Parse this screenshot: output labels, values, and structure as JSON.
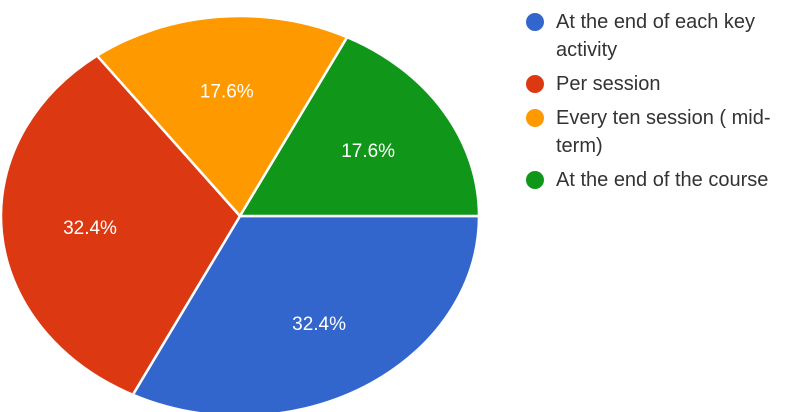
{
  "chart_data": {
    "type": "pie",
    "title": "",
    "slices": [
      {
        "label": "At the end of each key activity",
        "value": 32.4,
        "value_label": "32.4%",
        "color": "#3366cc"
      },
      {
        "label": "Per session",
        "value": 32.4,
        "value_label": "32.4%",
        "color": "#dc3912"
      },
      {
        "label": "Every ten session ( mid-term)",
        "value": 17.6,
        "value_label": "17.6%",
        "color": "#ff9900"
      },
      {
        "label": "At the end of the course",
        "value": 17.6,
        "value_label": "17.6%",
        "color": "#109618"
      }
    ],
    "legend_position": "right"
  }
}
